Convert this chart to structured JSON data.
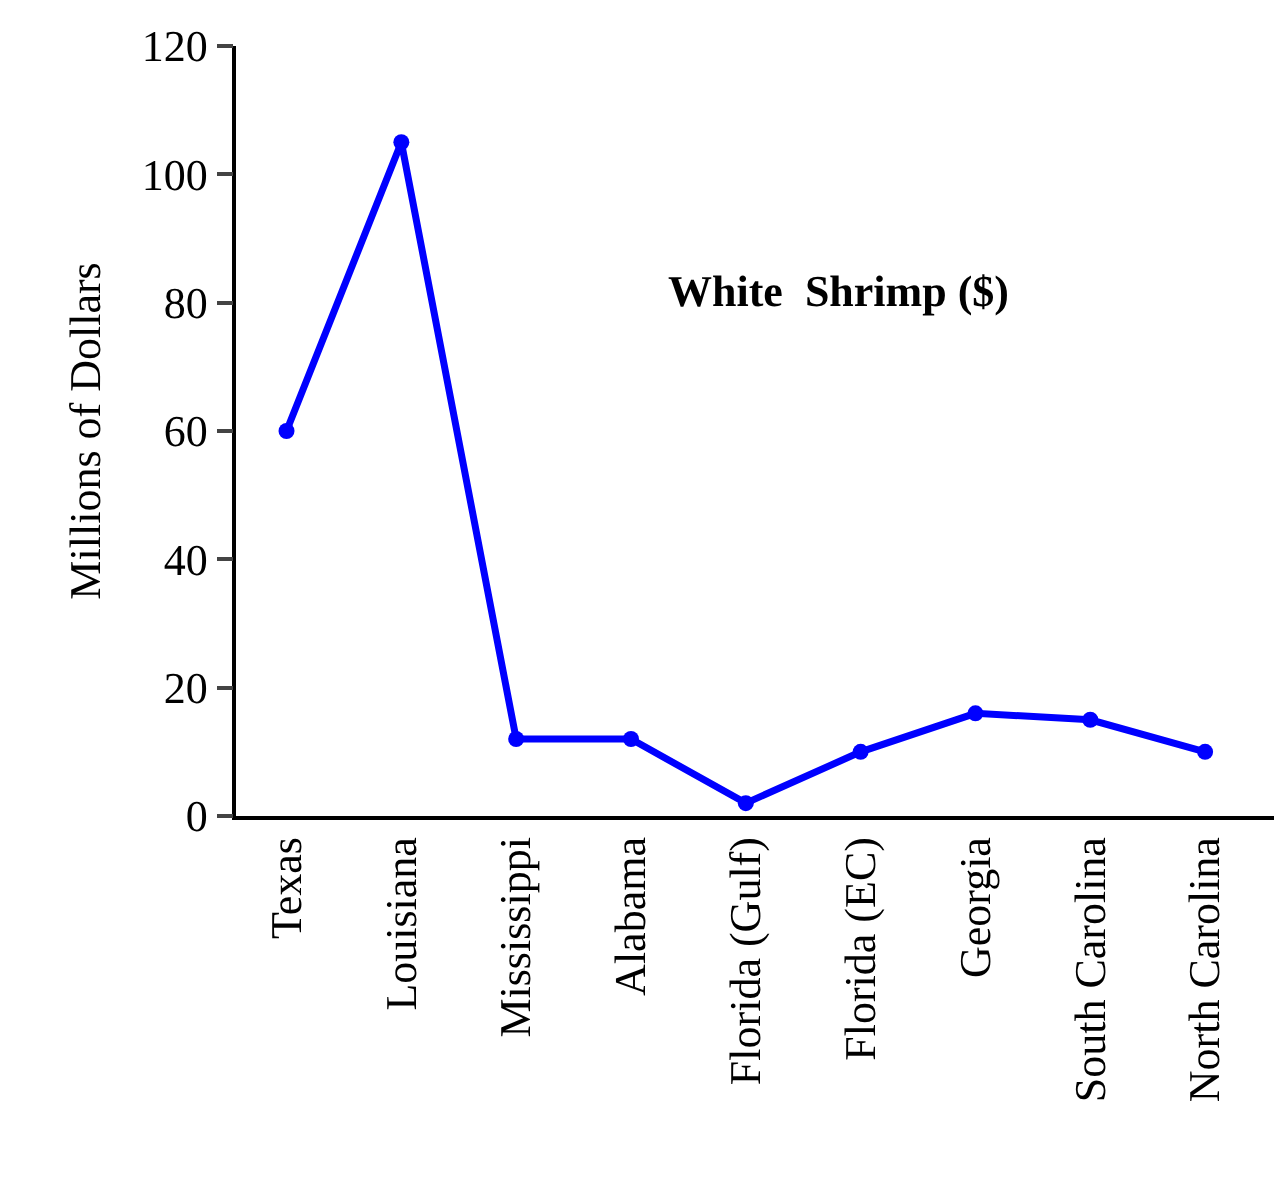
{
  "chart_data": {
    "type": "line",
    "title": "White  Shrimp ($)",
    "ylabel": "Millions of Dollars",
    "categories": [
      "Texas",
      "Louisiana",
      "Mississippi",
      "Alabama",
      "Florida (Gulf)",
      "Florida (EC)",
      "Georgia",
      "South Carolina",
      "North Carolina"
    ],
    "series": [
      {
        "color": "#0000ff",
        "values": [
          60,
          105,
          12,
          12,
          2,
          10,
          16,
          15,
          10
        ]
      }
    ],
    "ylim": [
      0,
      120
    ],
    "yticks": [
      0,
      20,
      40,
      60,
      80,
      100,
      120
    ],
    "grid": false,
    "legend": false,
    "marker": "circle",
    "line_style": "solid"
  }
}
